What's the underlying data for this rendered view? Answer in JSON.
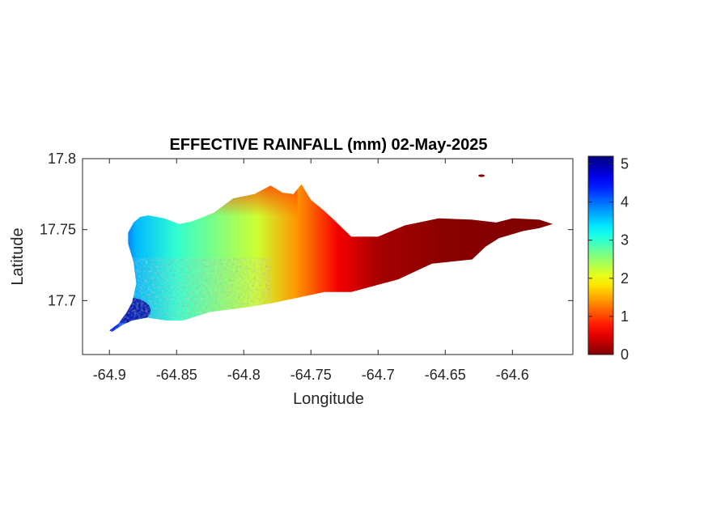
{
  "chart_data": {
    "type": "heatmap",
    "title": "EFFECTIVE RAINFALL (mm) 02-May-2025",
    "xlabel": "Longitude",
    "ylabel": "Latitude",
    "xlim": [
      -64.92,
      -64.555
    ],
    "ylim": [
      17.662,
      17.8
    ],
    "x_ticks": [
      -64.9,
      -64.85,
      -64.8,
      -64.75,
      -64.7,
      -64.65,
      -64.6
    ],
    "x_tick_labels": [
      "-64.9",
      "-64.85",
      "-64.8",
      "-64.75",
      "-64.7",
      "-64.65",
      "-64.6"
    ],
    "y_ticks": [
      17.7,
      17.75,
      17.8
    ],
    "y_tick_labels": [
      "17.7",
      "17.75",
      "17.8"
    ],
    "colorbar": {
      "colormap": "jet",
      "range": [
        0,
        5.2
      ],
      "ticks": [
        0,
        1,
        2,
        3,
        4,
        5
      ],
      "tick_labels": [
        "0",
        "1",
        "2",
        "3",
        "4",
        "5"
      ]
    },
    "island_outline": [
      [
        -64.9,
        17.679
      ],
      [
        -64.893,
        17.684
      ],
      [
        -64.887,
        17.692
      ],
      [
        -64.883,
        17.699
      ],
      [
        -64.88,
        17.712
      ],
      [
        -64.882,
        17.727
      ],
      [
        -64.886,
        17.74
      ],
      [
        -64.886,
        17.748
      ],
      [
        -64.882,
        17.755
      ],
      [
        -64.877,
        17.759
      ],
      [
        -64.871,
        17.76
      ],
      [
        -64.859,
        17.758
      ],
      [
        -64.848,
        17.754
      ],
      [
        -64.838,
        17.756
      ],
      [
        -64.822,
        17.762
      ],
      [
        -64.808,
        17.772
      ],
      [
        -64.792,
        17.775
      ],
      [
        -64.78,
        17.781
      ],
      [
        -64.771,
        17.776
      ],
      [
        -64.763,
        17.775
      ],
      [
        -64.757,
        17.782
      ],
      [
        -64.75,
        17.771
      ],
      [
        -64.741,
        17.764
      ],
      [
        -64.733,
        17.757
      ],
      [
        -64.72,
        17.745
      ],
      [
        -64.7,
        17.745
      ],
      [
        -64.68,
        17.753
      ],
      [
        -64.655,
        17.758
      ],
      [
        -64.63,
        17.757
      ],
      [
        -64.612,
        17.755
      ],
      [
        -64.6,
        17.758
      ],
      [
        -64.58,
        17.757
      ],
      [
        -64.57,
        17.754
      ],
      [
        -64.58,
        17.751
      ],
      [
        -64.592,
        17.749
      ],
      [
        -64.61,
        17.744
      ],
      [
        -64.62,
        17.738
      ],
      [
        -64.63,
        17.729
      ],
      [
        -64.66,
        17.726
      ],
      [
        -64.685,
        17.715
      ],
      [
        -64.72,
        17.706
      ],
      [
        -64.74,
        17.706
      ],
      [
        -64.76,
        17.702
      ],
      [
        -64.78,
        17.698
      ],
      [
        -64.8,
        17.695
      ],
      [
        -64.825,
        17.692
      ],
      [
        -64.845,
        17.686
      ],
      [
        -64.858,
        17.686
      ],
      [
        -64.872,
        17.688
      ],
      [
        -64.883,
        17.686
      ],
      [
        -64.89,
        17.683
      ],
      [
        -64.898,
        17.678
      ]
    ],
    "rainfall_field": {
      "description_units": "mm",
      "gradient_along_longitude": [
        {
          "lon": -64.9,
          "value": 4.6
        },
        {
          "lon": -64.88,
          "value": 3.6
        },
        {
          "lon": -64.85,
          "value": 3.0
        },
        {
          "lon": -64.82,
          "value": 2.6
        },
        {
          "lon": -64.79,
          "value": 2.2
        },
        {
          "lon": -64.76,
          "value": 1.4
        },
        {
          "lon": -64.73,
          "value": 0.6
        },
        {
          "lon": -64.7,
          "value": 0.2
        },
        {
          "lon": -64.65,
          "value": 0.05
        },
        {
          "lon": -64.58,
          "value": 0.0
        }
      ],
      "north_coast_value": 1.0,
      "southwest_max_value": 5.0
    }
  }
}
